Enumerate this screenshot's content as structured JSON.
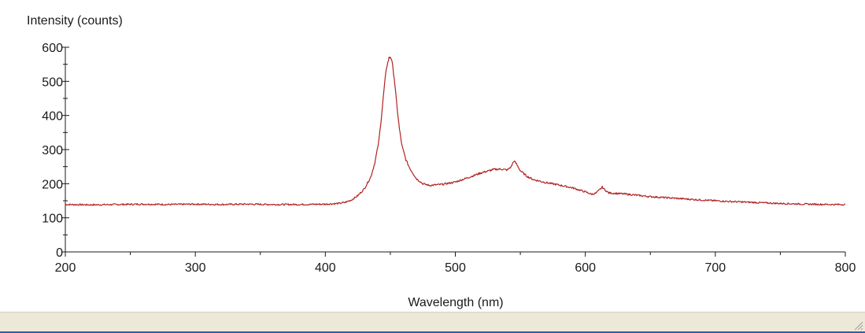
{
  "chart_data": {
    "type": "line",
    "ylabel": "Intensity (counts)",
    "xlabel": "Wavelength (nm)",
    "xlim": [
      200,
      800
    ],
    "ylim": [
      0,
      600
    ],
    "x_ticks": [
      200,
      300,
      400,
      500,
      600,
      700,
      800
    ],
    "y_ticks": [
      0,
      100,
      200,
      300,
      400,
      500,
      600
    ],
    "x_tick_labels": [
      "200",
      "300",
      "400",
      "500",
      "600",
      "700",
      "800"
    ],
    "y_tick_labels": [
      "0",
      "100",
      "200",
      "300",
      "400",
      "500",
      "600"
    ],
    "grid": false,
    "line_color": "#b22222",
    "series": [
      {
        "x": [
          200,
          220,
          240,
          260,
          280,
          300,
          320,
          340,
          360,
          380,
          400,
          410,
          415,
          420,
          425,
          430,
          435,
          438,
          441,
          443,
          445,
          447,
          449,
          450,
          451,
          453,
          455,
          457,
          459,
          462,
          465,
          470,
          475,
          480,
          490,
          500,
          510,
          520,
          530,
          535,
          540,
          543,
          545,
          547,
          550,
          555,
          560,
          570,
          580,
          590,
          600,
          605,
          608,
          611,
          613,
          615,
          618,
          622,
          630,
          650,
          670,
          690,
          710,
          730,
          750,
          770,
          790,
          800
        ],
        "y": [
          139,
          138,
          139,
          140,
          139,
          140,
          139,
          140,
          139,
          139,
          140,
          142,
          145,
          152,
          165,
          185,
          220,
          260,
          320,
          390,
          470,
          540,
          568,
          572,
          565,
          510,
          430,
          360,
          310,
          270,
          245,
          215,
          200,
          195,
          198,
          205,
          218,
          232,
          242,
          243,
          240,
          250,
          267,
          258,
          238,
          222,
          212,
          203,
          196,
          188,
          176,
          169,
          172,
          182,
          190,
          182,
          173,
          172,
          170,
          162,
          157,
          152,
          148,
          145,
          142,
          140,
          139,
          139
        ]
      }
    ]
  },
  "colors": {
    "status_bar": "#ece9d8",
    "status_bar_accent": "#2f5ea8",
    "axis": "#1a1a1a"
  }
}
